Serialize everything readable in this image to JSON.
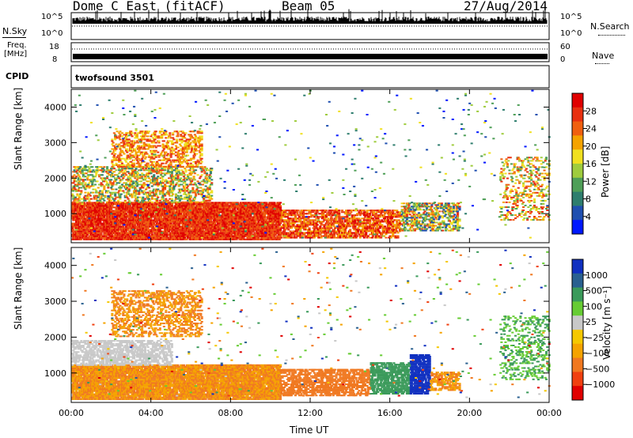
{
  "header": {
    "radar": "Dome C East (fitACF)",
    "beam": "Beam 05",
    "date": "27/Aug/2014"
  },
  "top_panels": {
    "nsky_label": "N.Sky",
    "nsky_ticks": [
      "10^5",
      "10^0"
    ],
    "nsearch_label": "N.Search",
    "nsearch_ticks": [
      "10^5",
      "10^0"
    ],
    "freq_label_1": "Freq.",
    "freq_label_2": "[MHz]",
    "freq_ticks": [
      "18",
      "8"
    ],
    "nave_label": "Nave",
    "nave_ticks": [
      "60",
      "0"
    ],
    "cpid_label": "CPID",
    "cpid_value": "twofsound 3501"
  },
  "colors": {
    "power_scale": [
      "#0018ff",
      "#1f4fb0",
      "#2e7e6e",
      "#4f9f58",
      "#9fcc3e",
      "#f0e020",
      "#f5a300",
      "#f06010",
      "#e83010",
      "#e00000"
    ],
    "velocity_scale": [
      "#e00000",
      "#f04010",
      "#f07820",
      "#f5a300",
      "#f5c800",
      "#c8c8c8",
      "#66cc33",
      "#3a9a5a",
      "#2a6090",
      "#1030c0"
    ]
  },
  "chart_data": [
    {
      "type": "heatmap",
      "title": "Power",
      "xlabel": "",
      "ylabel": "Slant Range [km]",
      "xticks": [
        "00:00",
        "04:00",
        "08:00",
        "12:00",
        "16:00",
        "20:00",
        "00:00"
      ],
      "yticks": [
        "1000",
        "2000",
        "3000",
        "4000"
      ],
      "xlim_hours": [
        0,
        24
      ],
      "ylim_km": [
        180,
        4500
      ],
      "colorbar": {
        "label": "Power [dB]",
        "ticks": [
          "4",
          "8",
          "12",
          "16",
          "20",
          "24",
          "28"
        ],
        "range": [
          0,
          30
        ]
      }
    },
    {
      "type": "heatmap",
      "title": "Velocity",
      "xlabel": "Time UT",
      "ylabel": "Slant Range [km]",
      "xticks": [
        "00:00",
        "04:00",
        "08:00",
        "12:00",
        "16:00",
        "20:00",
        "00:00"
      ],
      "yticks": [
        "1000",
        "2000",
        "3000",
        "4000"
      ],
      "xlim_hours": [
        0,
        24
      ],
      "ylim_km": [
        180,
        4500
      ],
      "colorbar": {
        "label": "Velocity [m s⁻¹]",
        "ticks": [
          "1000",
          "500",
          "100",
          "25",
          "−25",
          "−100",
          "−500",
          "−1000"
        ]
      }
    }
  ]
}
